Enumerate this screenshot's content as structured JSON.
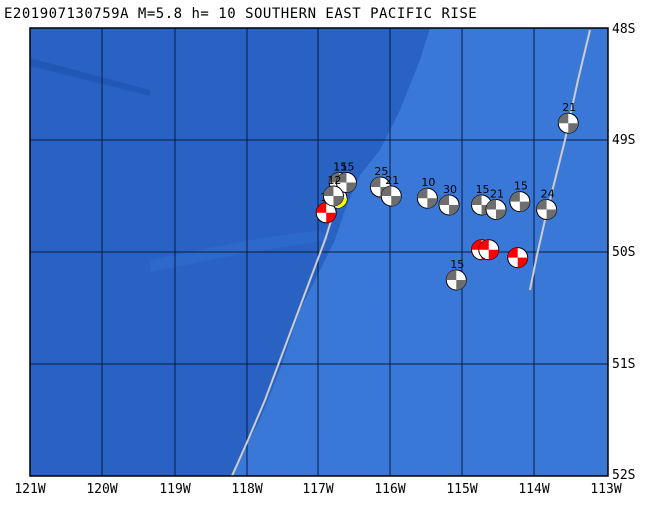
{
  "title": "E201907130759A M=5.8 h= 10 SOUTHERN EAST PACIFIC RISE",
  "lat_labels": [
    "48S",
    "49S",
    "50S",
    "51S",
    "52S"
  ],
  "lon_labels": [
    "121W",
    "120W",
    "119W",
    "118W",
    "117W",
    "116W",
    "115W",
    "114W",
    "113W"
  ],
  "colors": {
    "ocean_deep": "#2a62c4",
    "ocean_shallow": "#3a78d8",
    "grid": "#0a1a40",
    "plate_boundary": "#cccccc",
    "event_main": "#ffff00",
    "event_large": "#ff0000",
    "event_other": "#6e6e6e"
  },
  "events": [
    {
      "lon": -116.75,
      "lat": -49.52,
      "depth": "",
      "color": "event_main"
    },
    {
      "lon": -116.9,
      "lat": -49.65,
      "depth": "12",
      "color": "event_large"
    },
    {
      "lon": -116.72,
      "lat": -49.38,
      "depth": "15",
      "color": "event_other"
    },
    {
      "lon": -116.62,
      "lat": -49.38,
      "depth": "15",
      "color": "event_other"
    },
    {
      "lon": -116.8,
      "lat": -49.5,
      "depth": "12",
      "color": "event_other"
    },
    {
      "lon": -116.15,
      "lat": -49.42,
      "depth": "25",
      "color": "event_other"
    },
    {
      "lon": -116.0,
      "lat": -49.5,
      "depth": "21",
      "color": "event_other"
    },
    {
      "lon": -115.5,
      "lat": -49.52,
      "depth": "10",
      "color": "event_other"
    },
    {
      "lon": -115.2,
      "lat": -49.58,
      "depth": "30",
      "color": "event_other"
    },
    {
      "lon": -114.75,
      "lat": -49.58,
      "depth": "15",
      "color": "event_other"
    },
    {
      "lon": -114.55,
      "lat": -49.62,
      "depth": "21",
      "color": "event_other"
    },
    {
      "lon": -114.22,
      "lat": -49.55,
      "depth": "15",
      "color": "event_other"
    },
    {
      "lon": -113.85,
      "lat": -49.62,
      "depth": "24",
      "color": "event_other"
    },
    {
      "lon": -113.55,
      "lat": -48.85,
      "depth": "21",
      "color": "event_other"
    },
    {
      "lon": -115.1,
      "lat": -50.25,
      "depth": "15",
      "color": "event_other"
    },
    {
      "lon": -114.75,
      "lat": -49.98,
      "depth": "",
      "color": "event_large"
    },
    {
      "lon": -114.65,
      "lat": -49.98,
      "depth": "",
      "color": "event_large"
    },
    {
      "lon": -114.25,
      "lat": -50.05,
      "depth": "",
      "color": "event_large"
    }
  ]
}
